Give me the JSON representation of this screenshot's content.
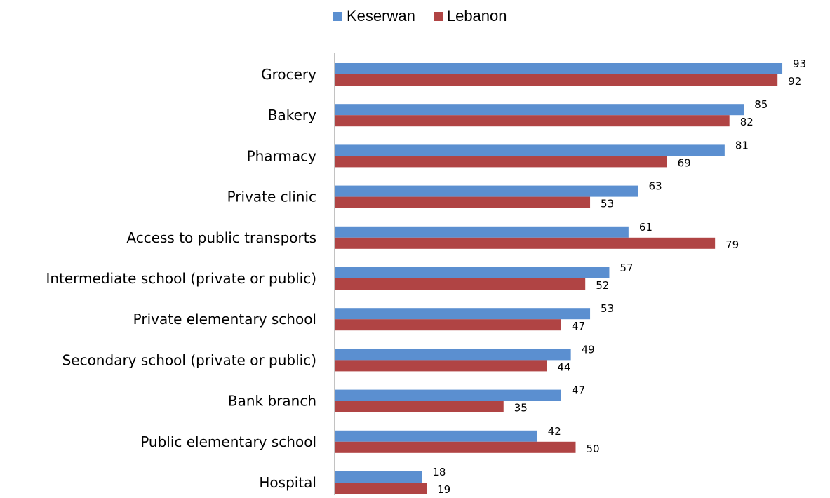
{
  "chart_data": {
    "type": "bar",
    "orientation": "horizontal",
    "title": "",
    "xlabel": "",
    "ylabel": "",
    "xlim": [
      0,
      100
    ],
    "grid": false,
    "legend_position": "top",
    "categories": [
      "Grocery",
      "Bakery",
      "Pharmacy",
      "Private clinic",
      "Access to public transports",
      "Intermediate school (private or public)",
      "Private elementary school",
      "Secondary school (private or public)",
      "Bank branch",
      "Public elementary school",
      "Hospital"
    ],
    "series": [
      {
        "name": "Keserwan",
        "color": "#5b8fd0",
        "values": [
          93,
          85,
          81,
          63,
          61,
          57,
          53,
          49,
          47,
          42,
          18
        ]
      },
      {
        "name": "Lebanon",
        "color": "#b04444",
        "values": [
          92,
          82,
          69,
          53,
          79,
          52,
          47,
          44,
          35,
          50,
          19
        ]
      }
    ]
  }
}
